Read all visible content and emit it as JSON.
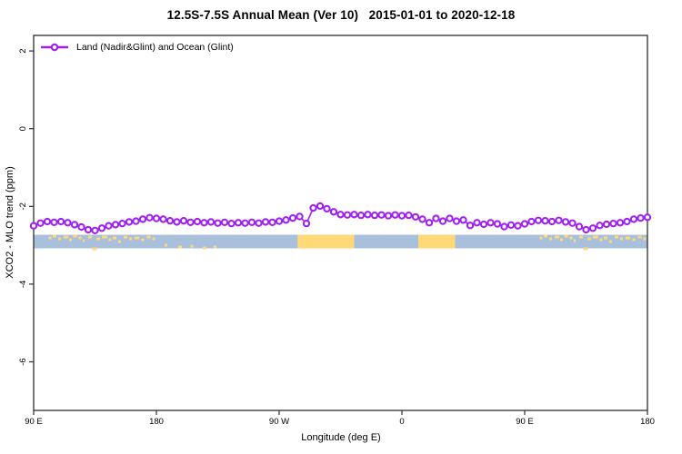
{
  "title": "12.5S-7.5S Annual Mean (Ver 10)   2015-01-01 to 2020-12-18",
  "legend": {
    "label": "Land (Nadir&Glint) and Ocean (Glint)"
  },
  "colors": {
    "series": "#A020F0",
    "marker_fill": "#FFFFFF",
    "ocean": "#A9C0DD",
    "land": "#FFD978",
    "frame": "#2E2E2E",
    "text": "#000000"
  },
  "chart_data": {
    "type": "line",
    "title": "12.5S-7.5S Annual Mean (Ver 10)   2015-01-01 to 2020-12-18",
    "xlabel": "Longitude (deg E)",
    "ylabel": "XCO2 - MLO trend (ppm)",
    "xlim": [
      90,
      540
    ],
    "ylim": [
      -7.25,
      2.4
    ],
    "grid": false,
    "legend_position": "top-left",
    "x_ticks": [
      {
        "value": 90,
        "label": "90 E"
      },
      {
        "value": 180,
        "label": "180"
      },
      {
        "value": 270,
        "label": "90 W"
      },
      {
        "value": 360,
        "label": "0"
      },
      {
        "value": 450,
        "label": "90 E"
      },
      {
        "value": 540,
        "label": "180"
      }
    ],
    "y_ticks": [
      {
        "value": 2,
        "label": "2"
      },
      {
        "value": 0,
        "label": "0"
      },
      {
        "value": -2,
        "label": "-2"
      },
      {
        "value": -4,
        "label": "-4"
      },
      {
        "value": -6,
        "label": "-6"
      }
    ],
    "series": [
      {
        "name": "Land (Nadir&Glint) and Ocean (Glint)",
        "marker": "open-circle",
        "points": [
          [
            90,
            -2.5
          ],
          [
            95,
            -2.43
          ],
          [
            100,
            -2.39
          ],
          [
            105,
            -2.41
          ],
          [
            110,
            -2.39
          ],
          [
            115,
            -2.42
          ],
          [
            120,
            -2.47
          ],
          [
            125,
            -2.53
          ],
          [
            130,
            -2.6
          ],
          [
            135,
            -2.62
          ],
          [
            140,
            -2.56
          ],
          [
            145,
            -2.5
          ],
          [
            150,
            -2.47
          ],
          [
            155,
            -2.44
          ],
          [
            160,
            -2.4
          ],
          [
            165,
            -2.38
          ],
          [
            170,
            -2.33
          ],
          [
            175,
            -2.29
          ],
          [
            180,
            -2.31
          ],
          [
            185,
            -2.33
          ],
          [
            190,
            -2.37
          ],
          [
            195,
            -2.4
          ],
          [
            200,
            -2.37
          ],
          [
            205,
            -2.41
          ],
          [
            210,
            -2.39
          ],
          [
            215,
            -2.42
          ],
          [
            220,
            -2.4
          ],
          [
            225,
            -2.43
          ],
          [
            230,
            -2.41
          ],
          [
            235,
            -2.44
          ],
          [
            240,
            -2.42
          ],
          [
            245,
            -2.43
          ],
          [
            250,
            -2.41
          ],
          [
            255,
            -2.43
          ],
          [
            260,
            -2.4
          ],
          [
            265,
            -2.41
          ],
          [
            270,
            -2.38
          ],
          [
            275,
            -2.35
          ],
          [
            280,
            -2.3
          ],
          [
            285,
            -2.26
          ],
          [
            290,
            -2.44
          ],
          [
            295,
            -2.04
          ],
          [
            300,
            -1.99
          ],
          [
            305,
            -2.06
          ],
          [
            310,
            -2.14
          ],
          [
            315,
            -2.21
          ],
          [
            320,
            -2.22
          ],
          [
            325,
            -2.21
          ],
          [
            330,
            -2.23
          ],
          [
            335,
            -2.21
          ],
          [
            340,
            -2.23
          ],
          [
            345,
            -2.22
          ],
          [
            350,
            -2.24
          ],
          [
            355,
            -2.22
          ],
          [
            360,
            -2.24
          ],
          [
            365,
            -2.23
          ],
          [
            370,
            -2.27
          ],
          [
            375,
            -2.33
          ],
          [
            380,
            -2.42
          ],
          [
            385,
            -2.31
          ],
          [
            390,
            -2.38
          ],
          [
            395,
            -2.31
          ],
          [
            400,
            -2.38
          ],
          [
            405,
            -2.35
          ],
          [
            410,
            -2.49
          ],
          [
            415,
            -2.42
          ],
          [
            420,
            -2.46
          ],
          [
            425,
            -2.42
          ],
          [
            430,
            -2.45
          ],
          [
            435,
            -2.52
          ],
          [
            440,
            -2.48
          ],
          [
            445,
            -2.5
          ],
          [
            450,
            -2.45
          ],
          [
            455,
            -2.39
          ],
          [
            460,
            -2.36
          ],
          [
            465,
            -2.37
          ],
          [
            470,
            -2.39
          ],
          [
            475,
            -2.36
          ],
          [
            480,
            -2.4
          ],
          [
            485,
            -2.43
          ],
          [
            490,
            -2.52
          ],
          [
            495,
            -2.6
          ],
          [
            500,
            -2.56
          ],
          [
            505,
            -2.49
          ],
          [
            510,
            -2.46
          ],
          [
            515,
            -2.44
          ],
          [
            520,
            -2.42
          ],
          [
            525,
            -2.39
          ],
          [
            530,
            -2.33
          ],
          [
            535,
            -2.3
          ],
          [
            540,
            -2.28
          ]
        ]
      }
    ],
    "map_strip": {
      "description": "land/ocean strip for latitude band",
      "y_top_value": -2.73,
      "y_bottom_value": -3.08,
      "land_segments_lon": [
        [
          283.5,
          325
        ],
        [
          372,
          399
        ]
      ],
      "island_speckles": [
        [
          101,
          2,
          3
        ],
        [
          104,
          0,
          4
        ],
        [
          108,
          3,
          3
        ],
        [
          112,
          1,
          5
        ],
        [
          116,
          4,
          3
        ],
        [
          119,
          0,
          4
        ],
        [
          123,
          2,
          3
        ],
        [
          126,
          5,
          2
        ],
        [
          130,
          1,
          4
        ],
        [
          133,
          14,
          5
        ],
        [
          136,
          3,
          4
        ],
        [
          140,
          1,
          6
        ],
        [
          145,
          4,
          3
        ],
        [
          148,
          2,
          4
        ],
        [
          152,
          6,
          3
        ],
        [
          156,
          1,
          4
        ],
        [
          160,
          3,
          3
        ],
        [
          164,
          2,
          5
        ],
        [
          169,
          4,
          3
        ],
        [
          173,
          1,
          4
        ],
        [
          177,
          3,
          3
        ],
        [
          186,
          10,
          3
        ],
        [
          196,
          12,
          4
        ],
        [
          205,
          11,
          3
        ],
        [
          214,
          13,
          4
        ],
        [
          222,
          12,
          3
        ],
        [
          461,
          2,
          3
        ],
        [
          464,
          0,
          4
        ],
        [
          468,
          3,
          3
        ],
        [
          472,
          1,
          5
        ],
        [
          476,
          4,
          3
        ],
        [
          479,
          0,
          4
        ],
        [
          483,
          2,
          3
        ],
        [
          486,
          5,
          2
        ],
        [
          490,
          1,
          4
        ],
        [
          493,
          14,
          5
        ],
        [
          496,
          3,
          4
        ],
        [
          500,
          1,
          6
        ],
        [
          505,
          4,
          3
        ],
        [
          508,
          2,
          4
        ],
        [
          512,
          6,
          3
        ],
        [
          516,
          1,
          4
        ],
        [
          520,
          3,
          3
        ],
        [
          524,
          2,
          5
        ],
        [
          529,
          4,
          3
        ],
        [
          533,
          1,
          4
        ],
        [
          537,
          3,
          3
        ]
      ]
    }
  }
}
